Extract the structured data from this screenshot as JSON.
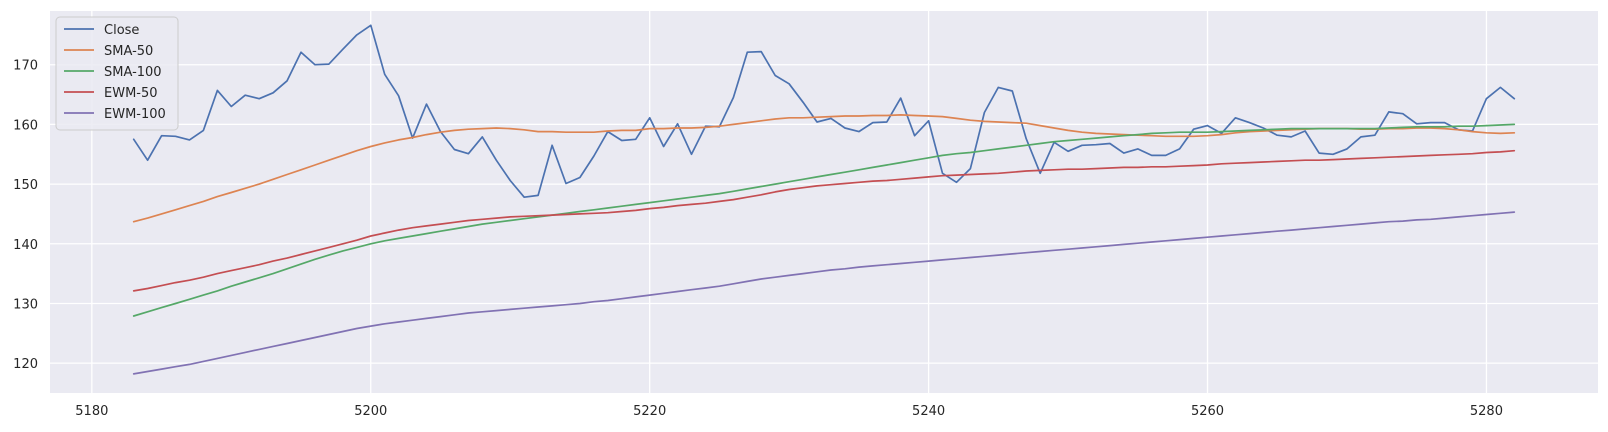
{
  "chart_data": {
    "type": "line",
    "title": "",
    "xlabel": "",
    "ylabel": "",
    "xlim": [
      5177,
      5288
    ],
    "ylim": [
      115,
      179
    ],
    "x_ticks": [
      5180,
      5200,
      5220,
      5240,
      5260,
      5280
    ],
    "y_ticks": [
      120,
      130,
      140,
      150,
      160,
      170
    ],
    "grid": true,
    "legend_position": "upper-left",
    "x_start": 5183,
    "series": [
      {
        "name": "Close",
        "color": "#4c72b0",
        "values": [
          157.5,
          154.0,
          158.1,
          158.0,
          157.4,
          159.0,
          165.7,
          163.0,
          164.9,
          164.3,
          165.3,
          167.3,
          172.1,
          170.0,
          170.1,
          172.6,
          175.0,
          176.6,
          168.4,
          164.8,
          157.7,
          163.4,
          158.8,
          155.8,
          155.1,
          157.9,
          154.0,
          150.6,
          147.8,
          148.1,
          156.5,
          150.1,
          151.1,
          154.7,
          158.8,
          157.3,
          157.5,
          161.1,
          156.3,
          160.1,
          155.0,
          159.7,
          159.6,
          164.5,
          172.1,
          172.2,
          168.2,
          166.8,
          163.7,
          160.4,
          161.0,
          159.4,
          158.8,
          160.3,
          160.4,
          164.4,
          158.1,
          160.6,
          151.8,
          150.3,
          152.6,
          162.0,
          166.2,
          165.6,
          157.6,
          151.8,
          157.0,
          155.5,
          156.5,
          156.6,
          156.8,
          155.2,
          155.9,
          154.8,
          154.8,
          155.9,
          159.2,
          159.8,
          158.5,
          161.1,
          160.3,
          159.4,
          158.2,
          157.9,
          158.9,
          155.2,
          155.0,
          155.9,
          157.9,
          158.2,
          162.1,
          161.8,
          160.1,
          160.3,
          160.3,
          159.1,
          158.9,
          164.3,
          166.2,
          164.3
        ]
      },
      {
        "name": "SMA-50",
        "color": "#dd8452",
        "values": [
          143.7,
          144.3,
          145.0,
          145.7,
          146.4,
          147.1,
          147.9,
          148.6,
          149.3,
          150.0,
          150.8,
          151.6,
          152.4,
          153.2,
          154.0,
          154.8,
          155.6,
          156.3,
          156.9,
          157.4,
          157.8,
          158.3,
          158.7,
          159.0,
          159.2,
          159.3,
          159.4,
          159.3,
          159.1,
          158.8,
          158.8,
          158.7,
          158.7,
          158.7,
          158.9,
          159.0,
          159.0,
          159.3,
          159.3,
          159.4,
          159.4,
          159.5,
          159.7,
          160.0,
          160.3,
          160.6,
          160.9,
          161.1,
          161.1,
          161.2,
          161.3,
          161.4,
          161.4,
          161.5,
          161.5,
          161.6,
          161.5,
          161.4,
          161.3,
          161.0,
          160.7,
          160.5,
          160.4,
          160.3,
          160.2,
          159.8,
          159.4,
          159.0,
          158.7,
          158.5,
          158.4,
          158.3,
          158.2,
          158.1,
          158.0,
          158.0,
          158.0,
          158.1,
          158.3,
          158.6,
          158.8,
          158.9,
          159.0,
          159.1,
          159.2,
          159.3,
          159.3,
          159.3,
          159.2,
          159.2,
          159.3,
          159.3,
          159.4,
          159.4,
          159.3,
          159.1,
          158.8,
          158.6,
          158.5,
          158.6
        ]
      },
      {
        "name": "SMA-100",
        "color": "#55a868",
        "values": [
          127.9,
          128.6,
          129.3,
          130.0,
          130.7,
          131.4,
          132.1,
          132.9,
          133.6,
          134.3,
          135.0,
          135.8,
          136.6,
          137.4,
          138.1,
          138.8,
          139.4,
          140.0,
          140.5,
          140.9,
          141.3,
          141.7,
          142.1,
          142.5,
          142.9,
          143.3,
          143.6,
          143.9,
          144.2,
          144.5,
          144.8,
          145.1,
          145.4,
          145.7,
          146.0,
          146.3,
          146.6,
          146.9,
          147.2,
          147.5,
          147.8,
          148.1,
          148.4,
          148.8,
          149.2,
          149.6,
          150.0,
          150.4,
          150.8,
          151.2,
          151.6,
          152.0,
          152.4,
          152.8,
          153.2,
          153.6,
          154.0,
          154.4,
          154.8,
          155.1,
          155.3,
          155.6,
          155.9,
          156.2,
          156.5,
          156.8,
          157.1,
          157.3,
          157.5,
          157.7,
          157.9,
          158.1,
          158.3,
          158.5,
          158.6,
          158.7,
          158.7,
          158.7,
          158.8,
          158.9,
          159.0,
          159.1,
          159.2,
          159.3,
          159.3,
          159.3,
          159.3,
          159.3,
          159.3,
          159.3,
          159.4,
          159.5,
          159.6,
          159.6,
          159.6,
          159.7,
          159.7,
          159.8,
          159.9,
          160.0
        ]
      },
      {
        "name": "EWM-50",
        "color": "#c44e52",
        "values": [
          132.1,
          132.5,
          133.0,
          133.5,
          133.9,
          134.4,
          135.0,
          135.5,
          136.0,
          136.5,
          137.1,
          137.6,
          138.2,
          138.8,
          139.4,
          140.0,
          140.6,
          141.3,
          141.8,
          142.3,
          142.7,
          143.0,
          143.3,
          143.6,
          143.9,
          144.1,
          144.3,
          144.5,
          144.6,
          144.7,
          144.8,
          144.9,
          145.0,
          145.1,
          145.2,
          145.4,
          145.6,
          145.9,
          146.1,
          146.4,
          146.6,
          146.8,
          147.1,
          147.4,
          147.8,
          148.2,
          148.7,
          149.1,
          149.4,
          149.7,
          149.9,
          150.1,
          150.3,
          150.5,
          150.6,
          150.8,
          151.0,
          151.2,
          151.4,
          151.5,
          151.6,
          151.7,
          151.8,
          152.0,
          152.2,
          152.3,
          152.4,
          152.5,
          152.5,
          152.6,
          152.7,
          152.8,
          152.8,
          152.9,
          152.9,
          153.0,
          153.1,
          153.2,
          153.4,
          153.5,
          153.6,
          153.7,
          153.8,
          153.9,
          154.0,
          154.0,
          154.1,
          154.2,
          154.3,
          154.4,
          154.5,
          154.6,
          154.7,
          154.8,
          154.9,
          155.0,
          155.1,
          155.3,
          155.4,
          155.6
        ]
      },
      {
        "name": "EWM-100",
        "color": "#8172b3",
        "values": [
          118.2,
          118.6,
          119.0,
          119.4,
          119.8,
          120.3,
          120.8,
          121.3,
          121.8,
          122.3,
          122.8,
          123.3,
          123.8,
          124.3,
          124.8,
          125.3,
          125.8,
          126.2,
          126.6,
          126.9,
          127.2,
          127.5,
          127.8,
          128.1,
          128.4,
          128.6,
          128.8,
          129.0,
          129.2,
          129.4,
          129.6,
          129.8,
          130.0,
          130.3,
          130.5,
          130.8,
          131.1,
          131.4,
          131.7,
          132.0,
          132.3,
          132.6,
          132.9,
          133.3,
          133.7,
          134.1,
          134.4,
          134.7,
          135.0,
          135.3,
          135.6,
          135.8,
          136.1,
          136.3,
          136.5,
          136.7,
          136.9,
          137.1,
          137.3,
          137.5,
          137.7,
          137.9,
          138.1,
          138.3,
          138.5,
          138.7,
          138.9,
          139.1,
          139.3,
          139.5,
          139.7,
          139.9,
          140.1,
          140.3,
          140.5,
          140.7,
          140.9,
          141.1,
          141.3,
          141.5,
          141.7,
          141.9,
          142.1,
          142.3,
          142.5,
          142.7,
          142.9,
          143.1,
          143.3,
          143.5,
          143.7,
          143.8,
          144.0,
          144.1,
          144.3,
          144.5,
          144.7,
          144.9,
          145.1,
          145.3
        ]
      }
    ]
  }
}
